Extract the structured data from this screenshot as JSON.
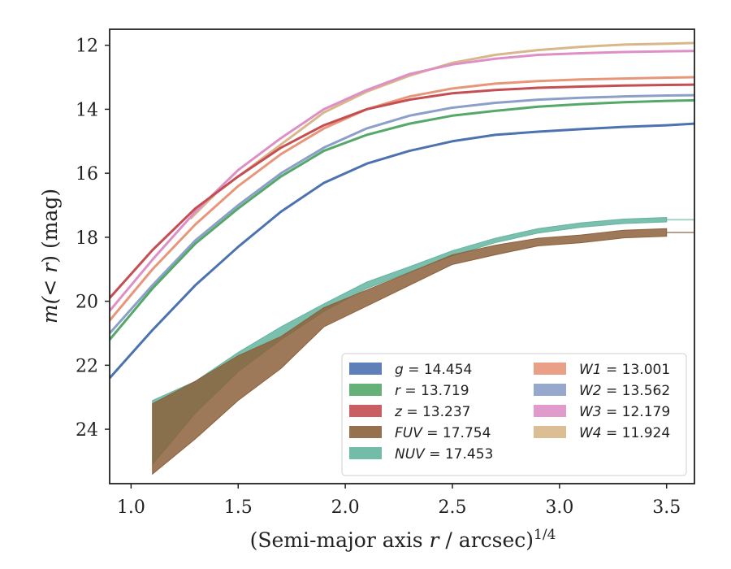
{
  "chart_data": {
    "type": "line",
    "xlabel_main": "(Semi-major axis ",
    "xlabel_var": "r",
    "xlabel_rest": " / arcsec)",
    "xlabel_exp": "1/4",
    "ylabel_pre": "m(< ",
    "ylabel_var": "r",
    "ylabel_post": ") (mag)",
    "xlim": [
      0.9,
      3.63
    ],
    "ylim": [
      25.7,
      11.5
    ],
    "x_ticks": [
      "1.0",
      "1.5",
      "2.0",
      "2.5",
      "3.0",
      "3.5"
    ],
    "x_tick_values": [
      1.0,
      1.5,
      2.0,
      2.5,
      3.0,
      3.5
    ],
    "y_ticks": [
      "12",
      "14",
      "16",
      "18",
      "20",
      "22",
      "24"
    ],
    "y_tick_values": [
      12,
      14,
      16,
      18,
      20,
      22,
      24
    ],
    "y_inverted": true,
    "legend_position": "lower-right",
    "legend_columns": 2,
    "series": [
      {
        "name": "g",
        "total": "14.454",
        "color": "#4c72b0",
        "x": [
          0.9,
          1.1,
          1.3,
          1.5,
          1.7,
          1.9,
          2.1,
          2.3,
          2.5,
          2.7,
          2.9,
          3.1,
          3.3,
          3.5,
          3.63
        ],
        "y": [
          22.4,
          20.9,
          19.5,
          18.3,
          17.2,
          16.3,
          15.7,
          15.3,
          15.0,
          14.8,
          14.7,
          14.62,
          14.55,
          14.5,
          14.45
        ]
      },
      {
        "name": "r",
        "total": "13.719",
        "color": "#55a868",
        "x": [
          0.9,
          1.1,
          1.3,
          1.5,
          1.7,
          1.9,
          2.1,
          2.3,
          2.5,
          2.7,
          2.9,
          3.1,
          3.3,
          3.5,
          3.63
        ],
        "y": [
          21.2,
          19.6,
          18.2,
          17.1,
          16.1,
          15.3,
          14.8,
          14.45,
          14.2,
          14.05,
          13.92,
          13.84,
          13.78,
          13.74,
          13.72
        ]
      },
      {
        "name": "z",
        "total": "13.237",
        "color": "#c44e52",
        "x": [
          0.9,
          1.1,
          1.3,
          1.5,
          1.7,
          1.9,
          2.1,
          2.3,
          2.5,
          2.7,
          2.9,
          3.1,
          3.3,
          3.5,
          3.63
        ],
        "y": [
          19.9,
          18.4,
          17.1,
          16.1,
          15.2,
          14.5,
          14.0,
          13.7,
          13.5,
          13.4,
          13.33,
          13.29,
          13.26,
          13.24,
          13.23
        ]
      },
      {
        "name": "FUV",
        "total": "17.754",
        "color": "#8c613c",
        "band": true,
        "x": [
          1.1,
          1.3,
          1.5,
          1.7,
          1.9,
          2.1,
          2.3,
          2.5,
          2.7,
          2.9,
          3.1,
          3.3,
          3.5
        ],
        "y": [
          24.3,
          23.4,
          22.4,
          21.6,
          20.5,
          19.9,
          19.3,
          18.7,
          18.4,
          18.15,
          18.05,
          17.9,
          17.85
        ],
        "err": [
          1.1,
          0.9,
          0.7,
          0.5,
          0.3,
          0.25,
          0.2,
          0.15,
          0.15,
          0.12,
          0.12,
          0.12,
          0.12
        ]
      },
      {
        "name": "NUV",
        "total": "17.453",
        "color": "#64b5a0",
        "band": true,
        "x": [
          1.1,
          1.3,
          1.5,
          1.7,
          1.9,
          2.1,
          2.3,
          2.5,
          2.7,
          2.9,
          3.1,
          3.3,
          3.5
        ],
        "y": [
          24.1,
          23.0,
          21.9,
          21.0,
          20.2,
          19.5,
          19.0,
          18.5,
          18.1,
          17.8,
          17.62,
          17.5,
          17.45
        ],
        "err": [
          1.0,
          0.5,
          0.3,
          0.2,
          0.12,
          0.1,
          0.08,
          0.08,
          0.07,
          0.07,
          0.07,
          0.07,
          0.07
        ]
      },
      {
        "name": "W1",
        "total": "13.001",
        "color": "#e8967a",
        "x": [
          0.9,
          1.1,
          1.3,
          1.5,
          1.7,
          1.9,
          2.1,
          2.3,
          2.5,
          2.7,
          2.9,
          3.1,
          3.3,
          3.5,
          3.63
        ],
        "y": [
          20.6,
          19.0,
          17.6,
          16.4,
          15.4,
          14.6,
          14.0,
          13.6,
          13.35,
          13.2,
          13.12,
          13.07,
          13.04,
          13.01,
          13.0
        ]
      },
      {
        "name": "W2",
        "total": "13.562",
        "color": "#8c9fc8",
        "x": [
          0.9,
          1.1,
          1.3,
          1.5,
          1.7,
          1.9,
          2.1,
          2.3,
          2.5,
          2.7,
          2.9,
          3.1,
          3.3,
          3.5,
          3.63
        ],
        "y": [
          21.0,
          19.5,
          18.1,
          17.0,
          16.0,
          15.2,
          14.6,
          14.2,
          13.95,
          13.8,
          13.7,
          13.64,
          13.6,
          13.57,
          13.56
        ]
      },
      {
        "name": "W3",
        "total": "12.179",
        "color": "#dd8fc6",
        "x": [
          0.9,
          1.1,
          1.3,
          1.5,
          1.7,
          1.9,
          2.1,
          2.3,
          2.5,
          2.7,
          2.9,
          3.1,
          3.3,
          3.5,
          3.63
        ],
        "y": [
          20.3,
          18.7,
          17.2,
          15.9,
          14.9,
          14.0,
          13.4,
          12.9,
          12.6,
          12.42,
          12.3,
          12.25,
          12.21,
          12.19,
          12.18
        ]
      },
      {
        "name": "W4",
        "total": "11.924",
        "color": "#d8b78a",
        "x": [
          1.28,
          1.4,
          1.5,
          1.7,
          1.9,
          2.1,
          2.3,
          2.5,
          2.7,
          2.9,
          3.1,
          3.3,
          3.5,
          3.63
        ],
        "y": [
          17.4,
          16.6,
          16.1,
          15.1,
          14.1,
          13.45,
          12.95,
          12.55,
          12.3,
          12.15,
          12.05,
          11.98,
          11.95,
          11.93
        ]
      }
    ],
    "legend_order": [
      [
        "g",
        "r",
        "z",
        "FUV",
        "NUV"
      ],
      [
        "W1",
        "W2",
        "W3",
        "W4"
      ]
    ]
  }
}
